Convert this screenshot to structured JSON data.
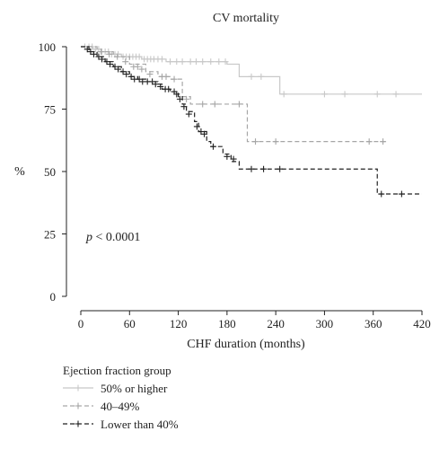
{
  "chart_data": {
    "type": "line",
    "title": "CV mortality",
    "xlabel": "CHF duration (months)",
    "ylabel": "%",
    "xlim": [
      0,
      420
    ],
    "ylim": [
      0,
      100
    ],
    "xticks": [
      0,
      60,
      120,
      180,
      240,
      300,
      360,
      420
    ],
    "yticks": [
      0,
      25,
      50,
      75,
      100
    ],
    "grid": false,
    "annotation": {
      "italic": "p",
      "rest": " < 0.0001"
    },
    "legend": {
      "title": "Ejection fraction group",
      "position": "bottom"
    },
    "series": [
      {
        "name": "50% or higher",
        "color": "#c8c8c8",
        "dash": "solid",
        "steps": [
          [
            0,
            100
          ],
          [
            15,
            99
          ],
          [
            25,
            98
          ],
          [
            35,
            97
          ],
          [
            50,
            96
          ],
          [
            75,
            95
          ],
          [
            105,
            94
          ],
          [
            130,
            94
          ],
          [
            180,
            93
          ],
          [
            195,
            88
          ],
          [
            245,
            81
          ],
          [
            420,
            81
          ]
        ],
        "censor": [
          [
            5,
            100
          ],
          [
            10,
            100
          ],
          [
            14,
            100
          ],
          [
            18,
            99
          ],
          [
            22,
            99
          ],
          [
            26,
            98
          ],
          [
            30,
            98
          ],
          [
            34,
            98
          ],
          [
            38,
            97
          ],
          [
            42,
            97
          ],
          [
            46,
            97
          ],
          [
            52,
            96
          ],
          [
            56,
            96
          ],
          [
            60,
            96
          ],
          [
            64,
            96
          ],
          [
            68,
            96
          ],
          [
            72,
            96
          ],
          [
            78,
            95
          ],
          [
            82,
            95
          ],
          [
            86,
            95
          ],
          [
            90,
            95
          ],
          [
            95,
            95
          ],
          [
            100,
            95
          ],
          [
            110,
            94
          ],
          [
            118,
            94
          ],
          [
            125,
            94
          ],
          [
            135,
            94
          ],
          [
            142,
            94
          ],
          [
            150,
            94
          ],
          [
            160,
            94
          ],
          [
            170,
            94
          ],
          [
            178,
            94
          ],
          [
            210,
            88
          ],
          [
            222,
            88
          ],
          [
            250,
            81
          ],
          [
            300,
            81
          ],
          [
            325,
            81
          ],
          [
            365,
            81
          ],
          [
            388,
            81
          ]
        ]
      },
      {
        "name": "40–49%",
        "color": "#a6a6a6",
        "dash": "dashed",
        "steps": [
          [
            0,
            100
          ],
          [
            20,
            98
          ],
          [
            40,
            96
          ],
          [
            60,
            93
          ],
          [
            80,
            90
          ],
          [
            95,
            88
          ],
          [
            110,
            87
          ],
          [
            125,
            80
          ],
          [
            135,
            77
          ],
          [
            205,
            62
          ],
          [
            375,
            62
          ]
        ],
        "censor": [
          [
            25,
            98
          ],
          [
            35,
            97
          ],
          [
            45,
            96
          ],
          [
            55,
            94
          ],
          [
            65,
            92
          ],
          [
            70,
            92
          ],
          [
            75,
            91
          ],
          [
            85,
            89
          ],
          [
            100,
            88
          ],
          [
            105,
            88
          ],
          [
            115,
            87
          ],
          [
            130,
            79
          ],
          [
            150,
            77
          ],
          [
            165,
            77
          ],
          [
            195,
            77
          ],
          [
            215,
            62
          ],
          [
            240,
            62
          ],
          [
            355,
            62
          ],
          [
            372,
            62
          ]
        ]
      },
      {
        "name": "Lower than 40%",
        "color": "#222222",
        "dash": "dashed",
        "steps": [
          [
            0,
            100
          ],
          [
            10,
            98
          ],
          [
            20,
            96
          ],
          [
            30,
            94
          ],
          [
            40,
            92
          ],
          [
            50,
            90
          ],
          [
            60,
            88
          ],
          [
            70,
            87
          ],
          [
            80,
            86
          ],
          [
            95,
            85
          ],
          [
            100,
            83
          ],
          [
            110,
            82
          ],
          [
            120,
            80
          ],
          [
            125,
            77
          ],
          [
            130,
            74
          ],
          [
            140,
            70
          ],
          [
            145,
            66
          ],
          [
            155,
            62
          ],
          [
            160,
            60
          ],
          [
            175,
            57
          ],
          [
            185,
            54
          ],
          [
            195,
            51
          ],
          [
            355,
            51
          ],
          [
            365,
            41
          ],
          [
            420,
            41
          ]
        ],
        "censor": [
          [
            8,
            99
          ],
          [
            12,
            98
          ],
          [
            16,
            97
          ],
          [
            22,
            96
          ],
          [
            26,
            95
          ],
          [
            32,
            94
          ],
          [
            36,
            93
          ],
          [
            42,
            92
          ],
          [
            46,
            91
          ],
          [
            52,
            90
          ],
          [
            56,
            89
          ],
          [
            62,
            88
          ],
          [
            66,
            87
          ],
          [
            72,
            87
          ],
          [
            76,
            86
          ],
          [
            82,
            86
          ],
          [
            88,
            86
          ],
          [
            92,
            85
          ],
          [
            98,
            84
          ],
          [
            104,
            83
          ],
          [
            108,
            83
          ],
          [
            115,
            82
          ],
          [
            118,
            81
          ],
          [
            122,
            79
          ],
          [
            127,
            76
          ],
          [
            133,
            73
          ],
          [
            143,
            68
          ],
          [
            148,
            66
          ],
          [
            152,
            65
          ],
          [
            163,
            60
          ],
          [
            180,
            56
          ],
          [
            188,
            55
          ],
          [
            210,
            51
          ],
          [
            225,
            51
          ],
          [
            245,
            51
          ],
          [
            370,
            41
          ],
          [
            395,
            41
          ]
        ]
      }
    ]
  }
}
